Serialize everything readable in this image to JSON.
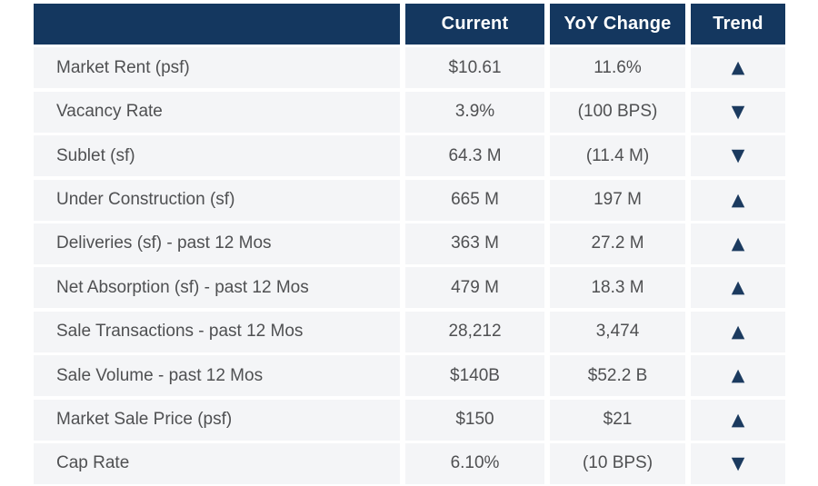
{
  "colors": {
    "header_bg": "#14375f",
    "header_text": "#ffffff",
    "row_bg": "#f4f5f7",
    "row_text": "#4f5052",
    "trend_icon": "#1b3a5f",
    "gutter": "#ffffff"
  },
  "icons": {
    "trend_up": "▲",
    "trend_down": "▼"
  },
  "chart_data": {
    "type": "table",
    "title": "",
    "columns": [
      "",
      "Current",
      "YoY Change",
      "Trend"
    ],
    "rows": [
      {
        "metric": "Market Rent (psf)",
        "current": "$10.61",
        "yoy_change": "11.6%",
        "trend": "up",
        "trend_icon": "▲"
      },
      {
        "metric": "Vacancy Rate",
        "current": "3.9%",
        "yoy_change": "(100 BPS)",
        "trend": "down",
        "trend_icon": "▼"
      },
      {
        "metric": "Sublet (sf)",
        "current": "64.3 M",
        "yoy_change": "(11.4 M)",
        "trend": "down",
        "trend_icon": "▼"
      },
      {
        "metric": "Under Construction (sf)",
        "current": "665 M",
        "yoy_change": "197 M",
        "trend": "up",
        "trend_icon": "▲"
      },
      {
        "metric": "Deliveries (sf) - past 12 Mos",
        "current": "363 M",
        "yoy_change": "27.2 M",
        "trend": "up",
        "trend_icon": "▲"
      },
      {
        "metric": "Net Absorption (sf) - past 12 Mos",
        "current": "479 M",
        "yoy_change": "18.3 M",
        "trend": "up",
        "trend_icon": "▲"
      },
      {
        "metric": "Sale Transactions - past 12 Mos",
        "current": "28,212",
        "yoy_change": "3,474",
        "trend": "up",
        "trend_icon": "▲"
      },
      {
        "metric": "Sale Volume - past 12 Mos",
        "current": "$140B",
        "yoy_change": "$52.2 B",
        "trend": "up",
        "trend_icon": "▲"
      },
      {
        "metric": "Market Sale Price (psf)",
        "current": "$150",
        "yoy_change": "$21",
        "trend": "up",
        "trend_icon": "▲"
      },
      {
        "metric": "Cap Rate",
        "current": "6.10%",
        "yoy_change": "(10 BPS)",
        "trend": "down",
        "trend_icon": "▼"
      }
    ]
  }
}
